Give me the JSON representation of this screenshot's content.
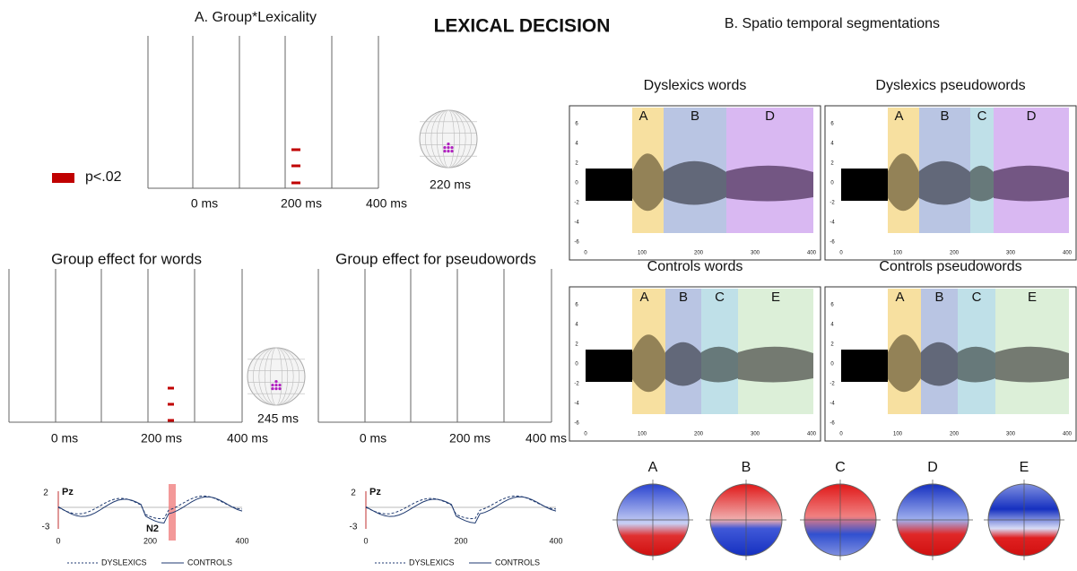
{
  "title": "LEXICAL DECISION",
  "panel_a": {
    "title": "A. Group*Lexicality",
    "legend": "p<.02",
    "time_labels": [
      "0 ms",
      "200 ms",
      "400 ms"
    ],
    "map_label": "220 ms"
  },
  "words": {
    "title": "Group effect for words",
    "time_labels": [
      "0 ms",
      "200 ms",
      "400 ms"
    ],
    "map_label": "245 ms",
    "erp": {
      "electrode": "Pz",
      "component": "N2",
      "y_labels": [
        "2",
        "-3"
      ],
      "x_labels": [
        "0",
        "200",
        "400"
      ],
      "legend": [
        "DYSLEXICS",
        "CONTROLS"
      ]
    }
  },
  "pseudowords": {
    "title": "Group effect for pseudowords",
    "time_labels": [
      "0 ms",
      "200 ms",
      "400 ms"
    ],
    "erp": {
      "electrode": "Pz",
      "y_labels": [
        "2",
        "-3"
      ],
      "x_labels": [
        "0",
        "200",
        "400"
      ],
      "legend": [
        "DYSLEXICS",
        "CONTROLS"
      ]
    }
  },
  "panel_b": {
    "title": "B. Spatio temporal segmentations",
    "plots": [
      {
        "title": "Dyslexics words",
        "segments": [
          "A",
          "B",
          "D"
        ],
        "y_labels": [
          "6",
          "4",
          "2",
          "0",
          "-2",
          "-4",
          "-6"
        ],
        "x_labels": [
          "0",
          "100",
          "200",
          "300",
          "400"
        ]
      },
      {
        "title": "Dyslexics pseudowords",
        "segments": [
          "A",
          "B",
          "C",
          "D"
        ],
        "y_labels": [
          "6",
          "4",
          "2",
          "0",
          "-2",
          "-4",
          "-6"
        ],
        "x_labels": [
          "0",
          "100",
          "200",
          "300",
          "400"
        ]
      },
      {
        "title": "Controls words",
        "segments": [
          "A",
          "B",
          "C",
          "E"
        ],
        "y_labels": [
          "6",
          "4",
          "2",
          "0",
          "-2",
          "-4",
          "-6"
        ],
        "x_labels": [
          "0",
          "100",
          "200",
          "300",
          "400"
        ]
      },
      {
        "title": "Controls pseudowords",
        "segments": [
          "A",
          "B",
          "C",
          "E"
        ],
        "y_labels": [
          "6",
          "4",
          "2",
          "0",
          "-2",
          "-4",
          "-6"
        ],
        "x_labels": [
          "0",
          "100",
          "200",
          "300",
          "400"
        ]
      }
    ],
    "maps": [
      "A",
      "B",
      "C",
      "D",
      "E"
    ]
  }
}
